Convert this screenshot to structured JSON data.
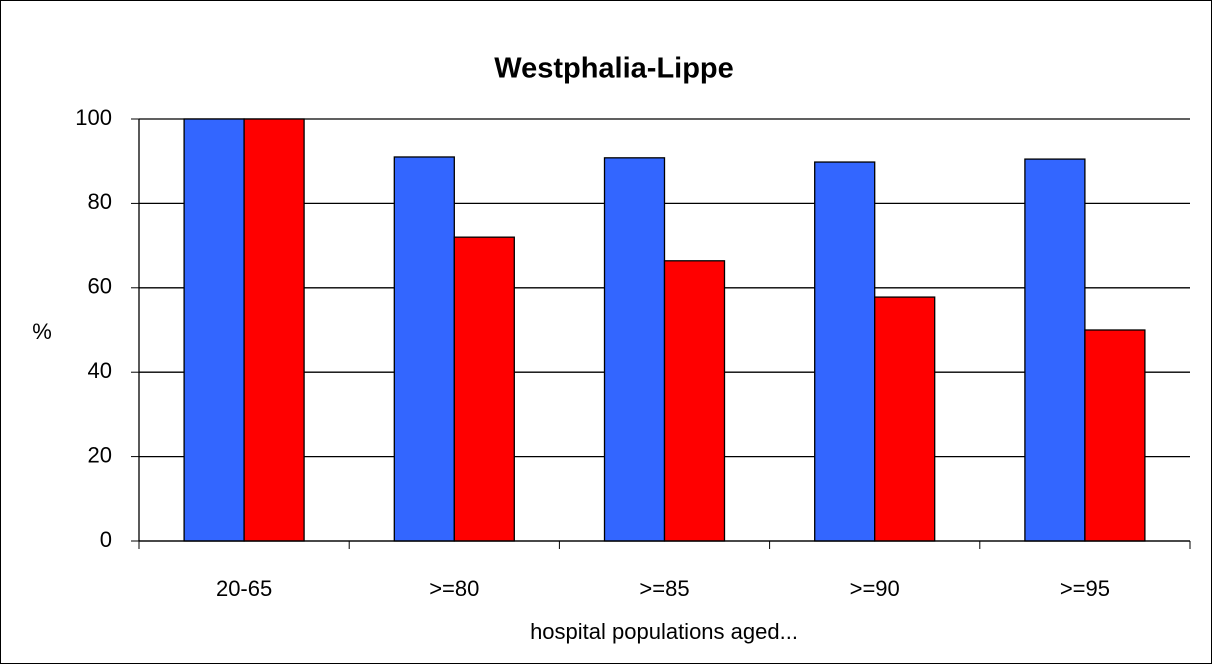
{
  "chart_data": {
    "type": "bar",
    "title": "Westphalia-Lippe",
    "x_label": "hospital populations aged...",
    "y_label": "%",
    "categories": [
      "20-65",
      ">=80",
      ">=85",
      ">=90",
      ">=95"
    ],
    "series": [
      {
        "color": "#3366ff",
        "values": [
          100,
          91.0,
          90.8,
          89.8,
          90.5
        ]
      },
      {
        "color": "#ff0000",
        "values": [
          100,
          72.0,
          66.4,
          57.8,
          50.0
        ]
      }
    ],
    "ylim": [
      0,
      100
    ],
    "yticks": [
      0,
      20,
      40,
      60,
      80,
      100
    ],
    "grid": true
  }
}
